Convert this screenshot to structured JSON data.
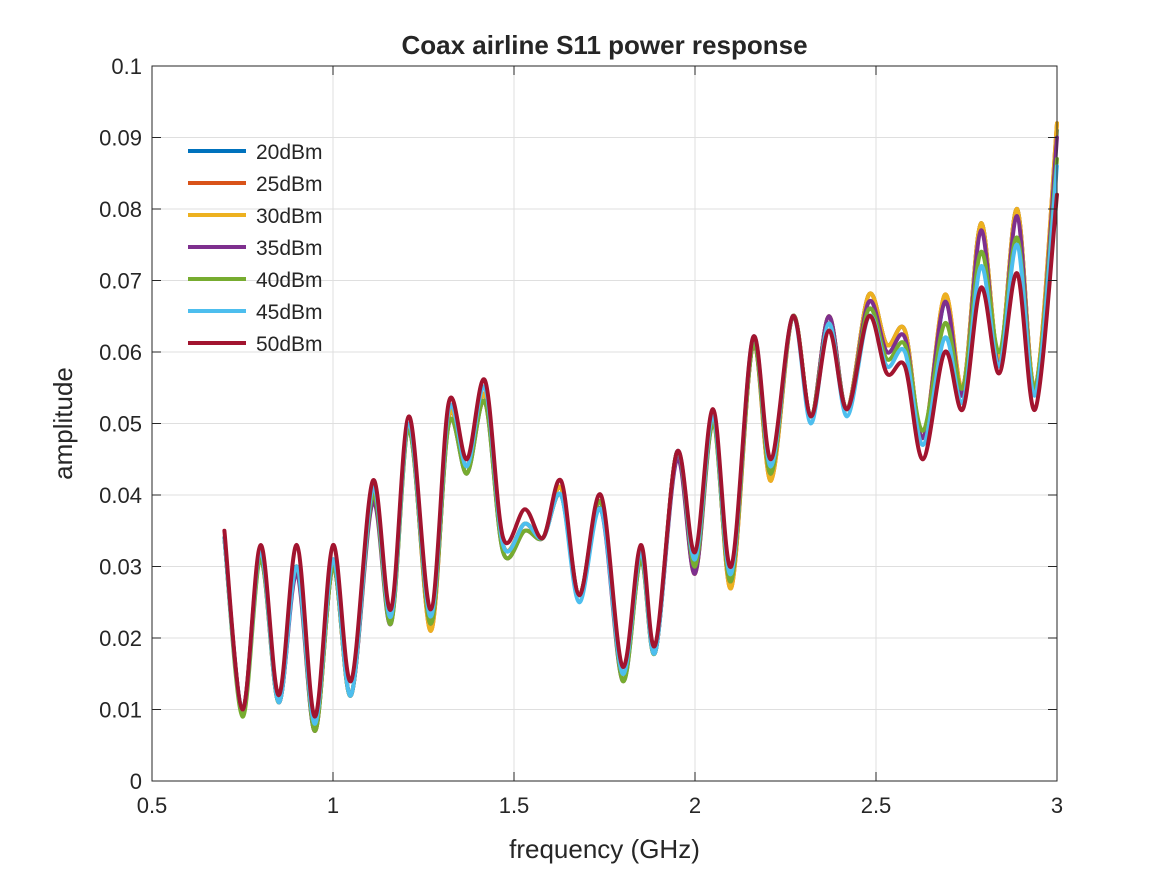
{
  "chart_data": {
    "type": "line",
    "title": "Coax airline S11 power response",
    "xlabel": "frequency (GHz)",
    "ylabel": "amplitude",
    "xlim": [
      0.5,
      3
    ],
    "ylim": [
      0,
      0.1
    ],
    "xticks": [
      0.5,
      1,
      1.5,
      2,
      2.5,
      3
    ],
    "xtick_labels": [
      "0.5",
      "1",
      "1.5",
      "2",
      "2.5",
      "3"
    ],
    "yticks": [
      0,
      0.01,
      0.02,
      0.03,
      0.04,
      0.05,
      0.06,
      0.07,
      0.08,
      0.09,
      0.1
    ],
    "ytick_labels": [
      "0",
      "0.01",
      "0.02",
      "0.03",
      "0.04",
      "0.05",
      "0.06",
      "0.07",
      "0.08",
      "0.09",
      "0.1"
    ],
    "grid": true,
    "legend_position": "top-left",
    "x": [
      0.7,
      0.75,
      0.8,
      0.85,
      0.9,
      0.95,
      1.0,
      1.05,
      1.11,
      1.16,
      1.21,
      1.27,
      1.32,
      1.37,
      1.42,
      1.47,
      1.53,
      1.58,
      1.63,
      1.68,
      1.74,
      1.8,
      1.85,
      1.89,
      1.95,
      2.0,
      2.05,
      2.1,
      2.16,
      2.21,
      2.27,
      2.32,
      2.37,
      2.42,
      2.48,
      2.53,
      2.58,
      2.63,
      2.69,
      2.74,
      2.79,
      2.84,
      2.89,
      2.94,
      3.0
    ],
    "series": [
      {
        "name": "20dBm",
        "color": "#0072BD",
        "values": [
          0.034,
          0.01,
          0.032,
          0.011,
          0.03,
          0.008,
          0.031,
          0.012,
          0.04,
          0.023,
          0.05,
          0.022,
          0.051,
          0.044,
          0.054,
          0.033,
          0.036,
          0.034,
          0.041,
          0.026,
          0.039,
          0.015,
          0.032,
          0.018,
          0.046,
          0.03,
          0.051,
          0.028,
          0.061,
          0.043,
          0.065,
          0.051,
          0.065,
          0.052,
          0.068,
          0.061,
          0.063,
          0.048,
          0.067,
          0.055,
          0.078,
          0.059,
          0.08,
          0.055,
          0.091
        ]
      },
      {
        "name": "25dBm",
        "color": "#D95319",
        "values": [
          0.034,
          0.01,
          0.032,
          0.011,
          0.03,
          0.007,
          0.03,
          0.012,
          0.04,
          0.023,
          0.05,
          0.021,
          0.051,
          0.044,
          0.054,
          0.033,
          0.036,
          0.034,
          0.041,
          0.026,
          0.039,
          0.015,
          0.032,
          0.018,
          0.046,
          0.029,
          0.051,
          0.027,
          0.061,
          0.042,
          0.065,
          0.051,
          0.065,
          0.052,
          0.068,
          0.061,
          0.063,
          0.048,
          0.068,
          0.055,
          0.078,
          0.059,
          0.08,
          0.055,
          0.092
        ]
      },
      {
        "name": "30dBm",
        "color": "#EDB120",
        "values": [
          0.034,
          0.01,
          0.032,
          0.011,
          0.03,
          0.007,
          0.03,
          0.012,
          0.04,
          0.023,
          0.05,
          0.021,
          0.051,
          0.044,
          0.054,
          0.033,
          0.036,
          0.034,
          0.041,
          0.026,
          0.039,
          0.015,
          0.032,
          0.018,
          0.046,
          0.029,
          0.051,
          0.027,
          0.061,
          0.042,
          0.065,
          0.051,
          0.065,
          0.052,
          0.068,
          0.061,
          0.063,
          0.048,
          0.068,
          0.055,
          0.078,
          0.059,
          0.08,
          0.055,
          0.092
        ]
      },
      {
        "name": "35dBm",
        "color": "#7E2F8E",
        "values": [
          0.034,
          0.01,
          0.031,
          0.011,
          0.029,
          0.007,
          0.03,
          0.012,
          0.039,
          0.022,
          0.049,
          0.022,
          0.05,
          0.043,
          0.053,
          0.032,
          0.035,
          0.034,
          0.04,
          0.026,
          0.038,
          0.014,
          0.031,
          0.018,
          0.045,
          0.029,
          0.05,
          0.028,
          0.061,
          0.043,
          0.065,
          0.051,
          0.065,
          0.052,
          0.067,
          0.06,
          0.062,
          0.048,
          0.067,
          0.054,
          0.077,
          0.058,
          0.079,
          0.054,
          0.09
        ]
      },
      {
        "name": "40dBm",
        "color": "#77AC30",
        "values": [
          0.034,
          0.009,
          0.031,
          0.011,
          0.03,
          0.007,
          0.03,
          0.012,
          0.04,
          0.022,
          0.049,
          0.022,
          0.05,
          0.043,
          0.053,
          0.032,
          0.035,
          0.034,
          0.04,
          0.026,
          0.039,
          0.014,
          0.031,
          0.018,
          0.046,
          0.03,
          0.05,
          0.028,
          0.061,
          0.043,
          0.065,
          0.051,
          0.064,
          0.052,
          0.066,
          0.059,
          0.061,
          0.049,
          0.064,
          0.055,
          0.074,
          0.06,
          0.076,
          0.055,
          0.087
        ]
      },
      {
        "name": "45dBm",
        "color": "#4DBEEE",
        "values": [
          0.034,
          0.01,
          0.032,
          0.011,
          0.03,
          0.008,
          0.031,
          0.012,
          0.041,
          0.023,
          0.05,
          0.023,
          0.052,
          0.044,
          0.055,
          0.033,
          0.036,
          0.034,
          0.04,
          0.025,
          0.038,
          0.015,
          0.032,
          0.018,
          0.046,
          0.031,
          0.051,
          0.029,
          0.062,
          0.044,
          0.065,
          0.05,
          0.064,
          0.051,
          0.065,
          0.058,
          0.06,
          0.047,
          0.062,
          0.053,
          0.072,
          0.058,
          0.075,
          0.054,
          0.086
        ]
      },
      {
        "name": "50dBm",
        "color": "#A2142F",
        "values": [
          0.035,
          0.01,
          0.033,
          0.012,
          0.033,
          0.009,
          0.033,
          0.014,
          0.042,
          0.024,
          0.051,
          0.024,
          0.053,
          0.045,
          0.056,
          0.034,
          0.038,
          0.034,
          0.042,
          0.026,
          0.04,
          0.016,
          0.033,
          0.019,
          0.046,
          0.032,
          0.052,
          0.03,
          0.062,
          0.045,
          0.065,
          0.051,
          0.063,
          0.052,
          0.065,
          0.057,
          0.058,
          0.045,
          0.06,
          0.052,
          0.069,
          0.057,
          0.071,
          0.052,
          0.082
        ]
      }
    ]
  }
}
